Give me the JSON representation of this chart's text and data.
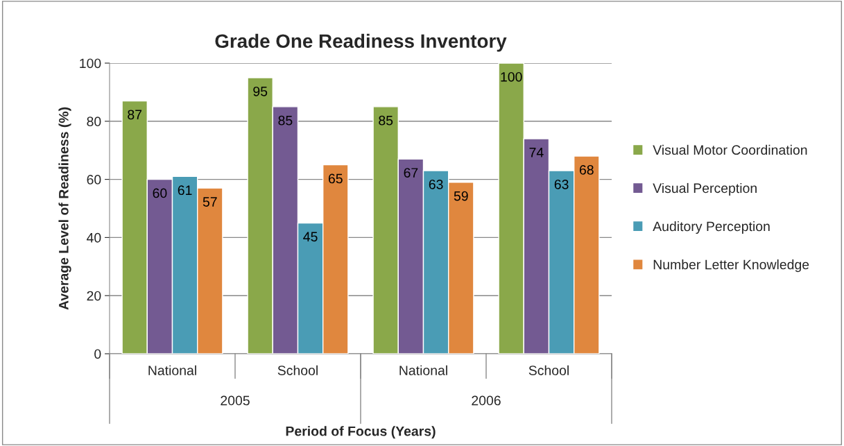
{
  "chart_data": {
    "type": "bar",
    "title": "Grade One Readiness Inventory",
    "xlabel": "Period of Focus (Years)",
    "ylabel": "Average Level of Readiness (%)",
    "categories": [
      "National",
      "School",
      "National",
      "School"
    ],
    "series": [
      {
        "name": "Visual Motor Coordination",
        "color": "#8aa84a",
        "values": [
          87,
          95,
          85,
          100
        ]
      },
      {
        "name": "Visual Perception",
        "color": "#735a92",
        "values": [
          60,
          85,
          67,
          74
        ]
      },
      {
        "name": "Auditory Perception",
        "color": "#4a9cb5",
        "values": [
          61,
          45,
          63,
          63
        ]
      },
      {
        "name": "Number Letter Knowledge",
        "color": "#e0873e",
        "values": [
          57,
          65,
          59,
          68
        ]
      }
    ],
    "annotations": [
      "2005",
      "2006"
    ],
    "ylim": [
      0,
      100
    ],
    "yticks": [
      0,
      20,
      40,
      60,
      80,
      100
    ],
    "grid": "y",
    "legend": "right",
    "data_labels": true
  }
}
